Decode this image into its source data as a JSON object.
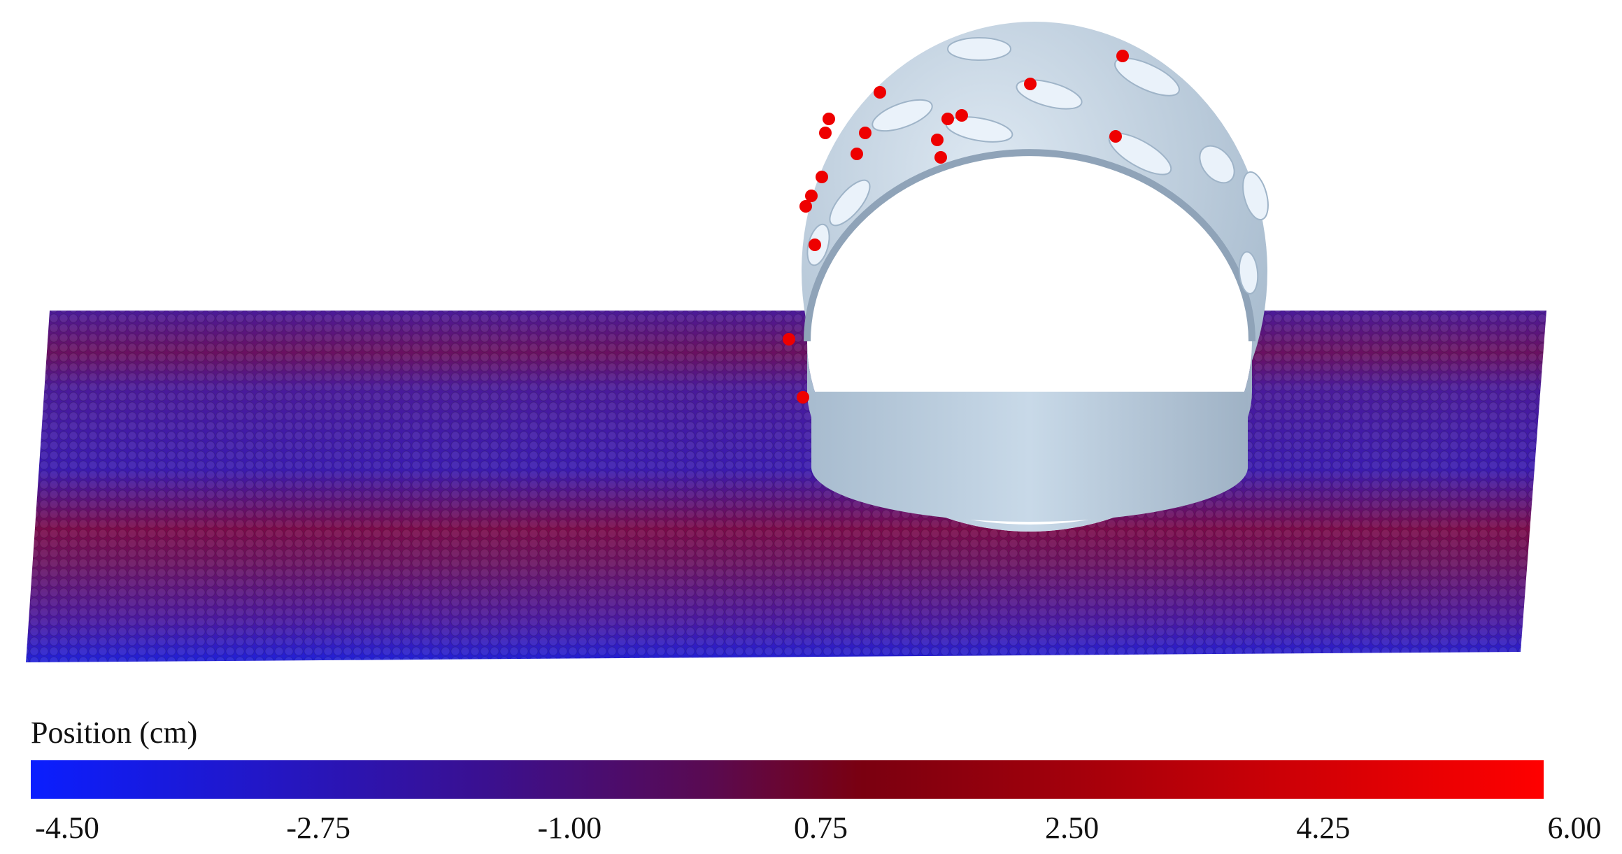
{
  "colorbar": {
    "title": "Position (cm)",
    "ticks": [
      "-4.50",
      "-2.75",
      "-1.00",
      "0.75",
      "2.50",
      "4.25",
      "6.00"
    ]
  }
}
